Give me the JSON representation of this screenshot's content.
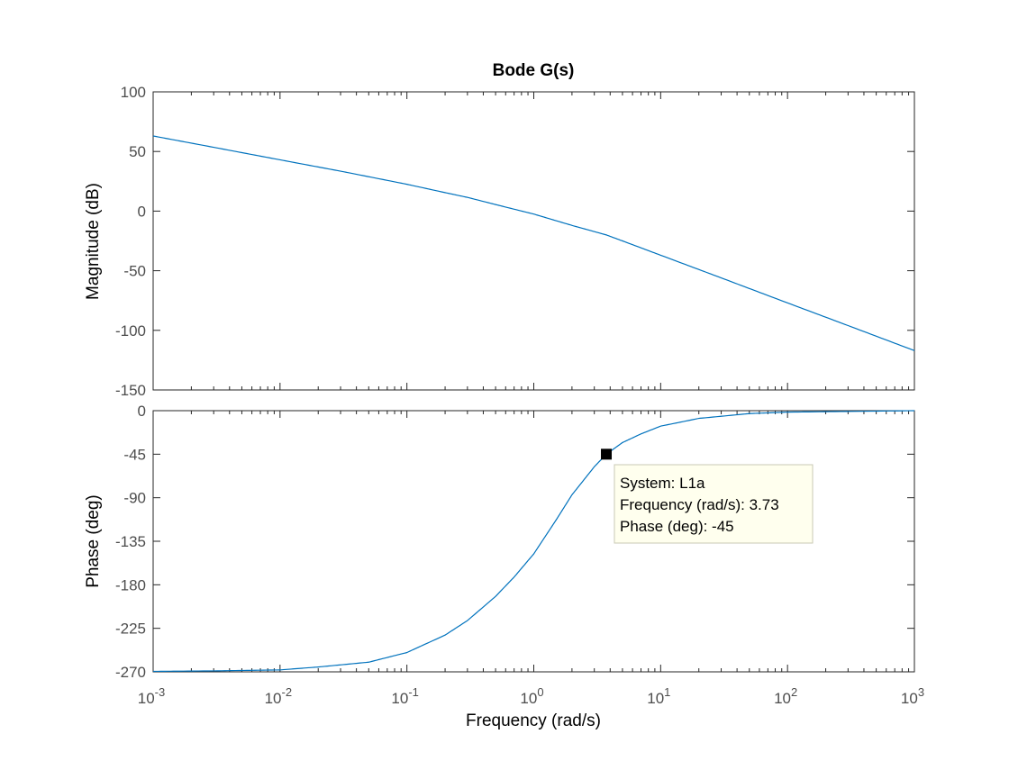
{
  "title": "Bode G(s)",
  "colors": {
    "trace": "#0072BD",
    "axis": "#262626",
    "tick_text": "#4d4d4d",
    "tip_bg": "#ffffee",
    "tip_border": "#c8c8b4"
  },
  "chart_data": [
    {
      "type": "line",
      "panel": "magnitude",
      "ylabel": "Magnitude (dB)",
      "xscale": "log",
      "xlim": [
        0.001,
        1000
      ],
      "ylim": [
        -150,
        100
      ],
      "yticks": [
        100,
        50,
        0,
        -50,
        -100,
        -150
      ],
      "grid": false,
      "series": [
        {
          "x": [
            0.001,
            0.003,
            0.01,
            0.03,
            0.1,
            0.2,
            0.3,
            0.5,
            1,
            2,
            3.73,
            5,
            10,
            30,
            100,
            300,
            1000
          ],
          "y": [
            63,
            53.5,
            43,
            33.5,
            22.5,
            15.5,
            11.5,
            5.5,
            -2.5,
            -12,
            -20,
            -25,
            -37,
            -56,
            -77,
            -96,
            -117
          ]
        }
      ]
    },
    {
      "type": "line",
      "panel": "phase",
      "ylabel": "Phase (deg)",
      "xlabel": "Frequency  (rad/s)",
      "xscale": "log",
      "xlim": [
        0.001,
        1000
      ],
      "ylim": [
        -270,
        0
      ],
      "yticks": [
        0,
        -45,
        -90,
        -135,
        -180,
        -225,
        -270
      ],
      "xticks": [
        {
          "base": "10",
          "exp": "-3"
        },
        {
          "base": "10",
          "exp": "-2"
        },
        {
          "base": "10",
          "exp": "-1"
        },
        {
          "base": "10",
          "exp": "0"
        },
        {
          "base": "10",
          "exp": "1"
        },
        {
          "base": "10",
          "exp": "2"
        },
        {
          "base": "10",
          "exp": "3"
        }
      ],
      "grid": false,
      "series": [
        {
          "x": [
            0.001,
            0.003,
            0.01,
            0.02,
            0.05,
            0.1,
            0.2,
            0.3,
            0.5,
            0.7,
            1,
            1.5,
            2,
            3,
            3.73,
            5,
            7,
            10,
            20,
            50,
            100,
            1000
          ],
          "y": [
            -269.5,
            -269,
            -268,
            -265,
            -260,
            -250,
            -232,
            -217,
            -192,
            -172,
            -148,
            -113,
            -87,
            -58,
            -45,
            -33,
            -24,
            -16,
            -8,
            -3,
            -1.5,
            0
          ]
        }
      ],
      "datatip": {
        "x": 3.73,
        "y": -45,
        "lines": [
          "System: L1a",
          "Frequency (rad/s): 3.73",
          "Phase (deg): -45"
        ]
      }
    }
  ]
}
